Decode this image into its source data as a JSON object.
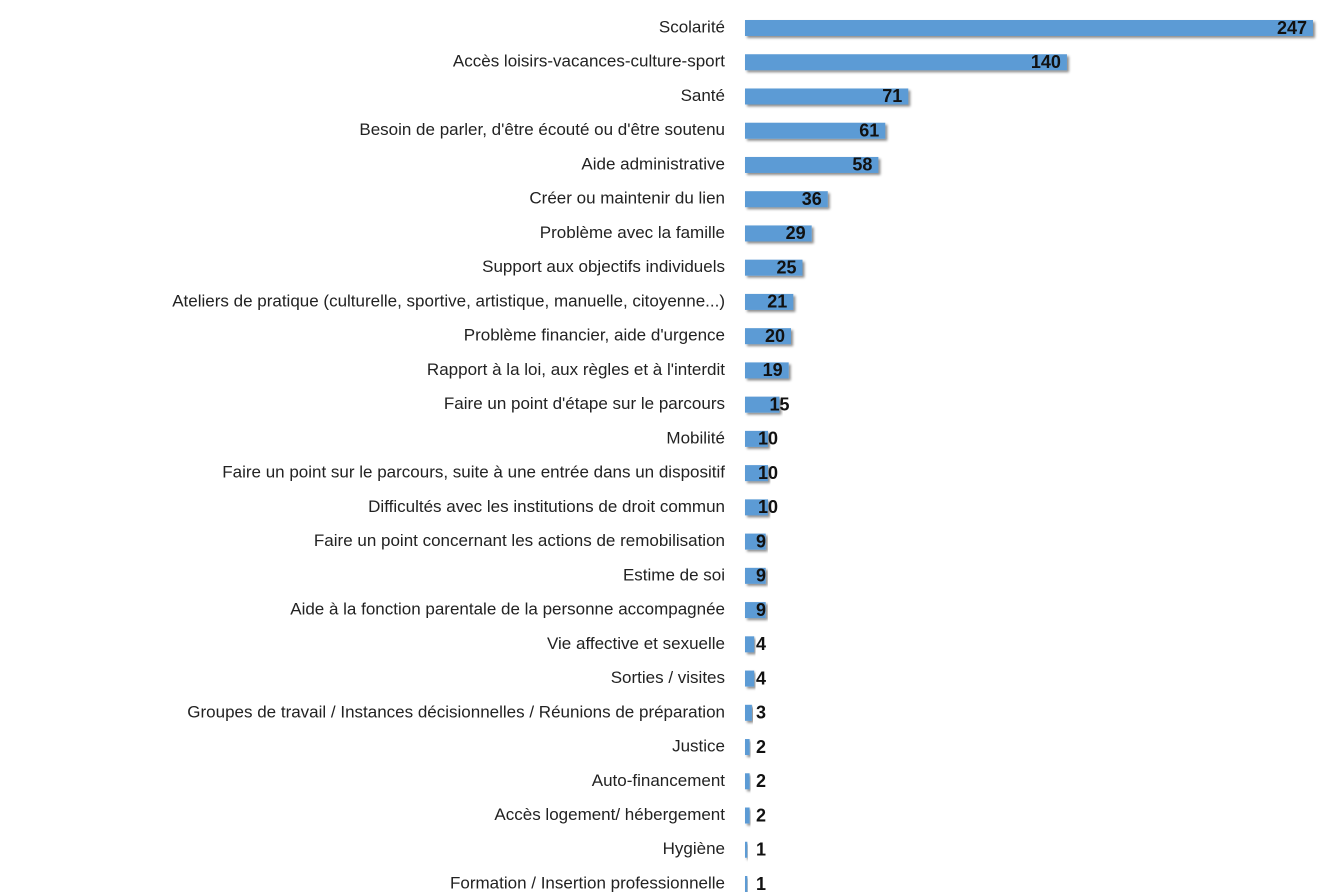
{
  "chart_data": {
    "type": "bar",
    "orientation": "horizontal",
    "color": "#5b9bd5",
    "categories": [
      "Scolarité",
      "Accès loisirs-vacances-culture-sport",
      "Santé",
      "Besoin de parler, d'être écouté ou d'être soutenu",
      "Aide administrative",
      "Créer ou maintenir du lien",
      "Problème avec la famille",
      "Support aux objectifs individuels",
      "Ateliers de pratique (culturelle, sportive, artistique, manuelle, citoyenne...)",
      "Problème financier, aide d'urgence",
      "Rapport à la loi, aux règles et à l'interdit",
      "Faire un point d'étape sur le parcours",
      "Mobilité",
      "Faire un point sur le parcours, suite à une entrée dans un dispositif",
      "Difficultés avec les institutions de droit commun",
      "Faire un point concernant les actions de remobilisation",
      "Estime de soi",
      "Aide à la fonction parentale de la personne accompagnée",
      "Vie affective et sexuelle",
      "Sorties / visites",
      "Groupes de travail / Instances décisionnelles / Réunions de préparation",
      "Justice",
      "Auto-financement",
      "Accès logement/ hébergement",
      "Hygiène",
      "Formation / Insertion professionnelle"
    ],
    "values": [
      247,
      140,
      71,
      61,
      58,
      36,
      29,
      25,
      21,
      20,
      19,
      15,
      10,
      10,
      10,
      9,
      9,
      9,
      4,
      4,
      3,
      2,
      2,
      2,
      1,
      1
    ]
  }
}
